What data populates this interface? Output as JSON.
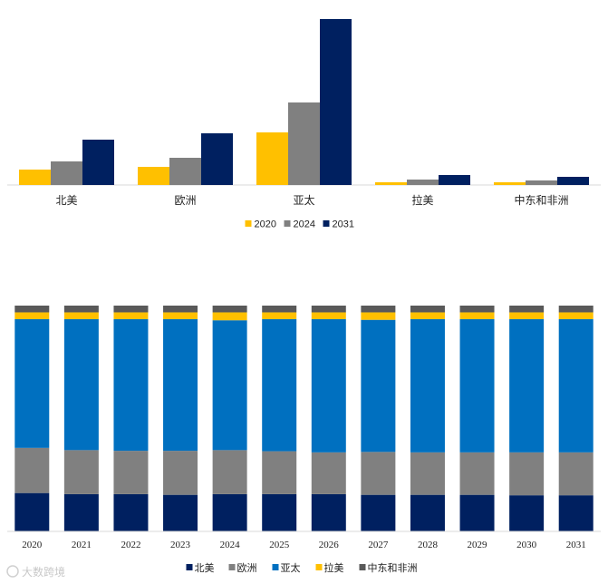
{
  "colors": {
    "c2020": "#ffc000",
    "c2024": "#808080",
    "c2031": "#002060",
    "na": "#002060",
    "eu": "#808080",
    "ap": "#0070c0",
    "la": "#ffc000",
    "mea": "#595959"
  },
  "chart_data": [
    {
      "type": "bar",
      "title": "",
      "categories": [
        "北美",
        "欧洲",
        "亚太",
        "拉美",
        "中东和非洲"
      ],
      "series": [
        {
          "name": "2020",
          "color": "#ffc000",
          "values": [
            17,
            20,
            58,
            3,
            3
          ]
        },
        {
          "name": "2024",
          "color": "#808080",
          "values": [
            26,
            30,
            91,
            6,
            5
          ]
        },
        {
          "name": "2031",
          "color": "#002060",
          "values": [
            50,
            57,
            183,
            11,
            9
          ]
        }
      ],
      "ylim": [
        0,
        183
      ],
      "legend": "bottom-center",
      "grid": false
    },
    {
      "type": "bar",
      "stacked": "percent",
      "title": "",
      "categories": [
        "2020",
        "2021",
        "2022",
        "2023",
        "2024",
        "2025",
        "2026",
        "2027",
        "2028",
        "2029",
        "2030",
        "2031"
      ],
      "series": [
        {
          "name": "北美",
          "color": "#002060",
          "values": [
            17.0,
            16.5,
            16.5,
            16.2,
            16.5,
            16.5,
            16.5,
            16.2,
            16.2,
            16.2,
            16.0,
            16.0
          ]
        },
        {
          "name": "欧洲",
          "color": "#808080",
          "values": [
            20.0,
            19.5,
            19.2,
            19.5,
            19.5,
            19.0,
            18.5,
            19.0,
            18.8,
            18.8,
            19.0,
            19.0
          ]
        },
        {
          "name": "亚太",
          "color": "#0070c0",
          "values": [
            57.0,
            58.0,
            58.3,
            58.3,
            57.5,
            58.5,
            59.0,
            58.5,
            59.0,
            59.0,
            59.0,
            59.0
          ]
        },
        {
          "name": "拉美",
          "color": "#ffc000",
          "values": [
            3.0,
            3.0,
            3.0,
            3.0,
            3.5,
            3.0,
            3.0,
            3.3,
            3.0,
            3.0,
            3.0,
            3.0
          ]
        },
        {
          "name": "中东和非洲",
          "color": "#595959",
          "values": [
            3.0,
            3.0,
            3.0,
            3.0,
            3.0,
            3.0,
            3.0,
            3.0,
            3.0,
            3.0,
            3.0,
            3.0
          ]
        }
      ],
      "ylim": [
        0,
        100
      ],
      "legend": "bottom-center",
      "grid": false
    }
  ],
  "watermark": "大数跨境"
}
